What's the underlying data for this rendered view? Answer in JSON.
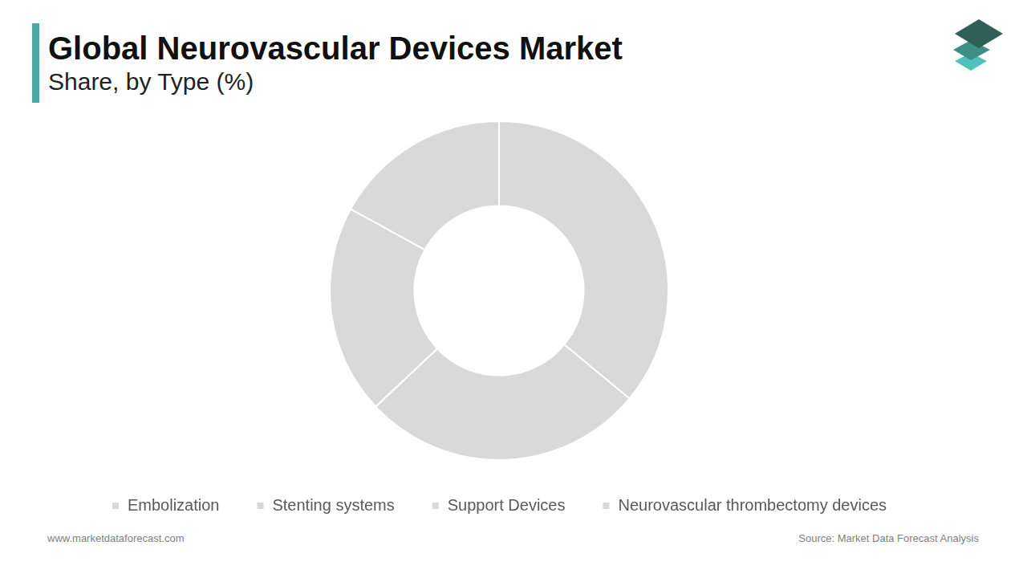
{
  "chart_data": {
    "type": "doughnut",
    "title": "Global Neurovascular Devices Market",
    "subtitle": "Share, by Type (%)",
    "categories": [
      "Embolization",
      "Stenting systems",
      "Support Devices",
      "Neurovascular thrombectomy devices"
    ],
    "values": [
      36,
      27,
      20,
      17
    ],
    "colors": [
      "#d9d9d9",
      "#d9d9d9",
      "#d9d9d9",
      "#d9d9d9"
    ],
    "legend": "bottom"
  },
  "footer": {
    "left": "www.marketdataforecast.com",
    "right": "Source: Market Data Forecast Analysis"
  }
}
